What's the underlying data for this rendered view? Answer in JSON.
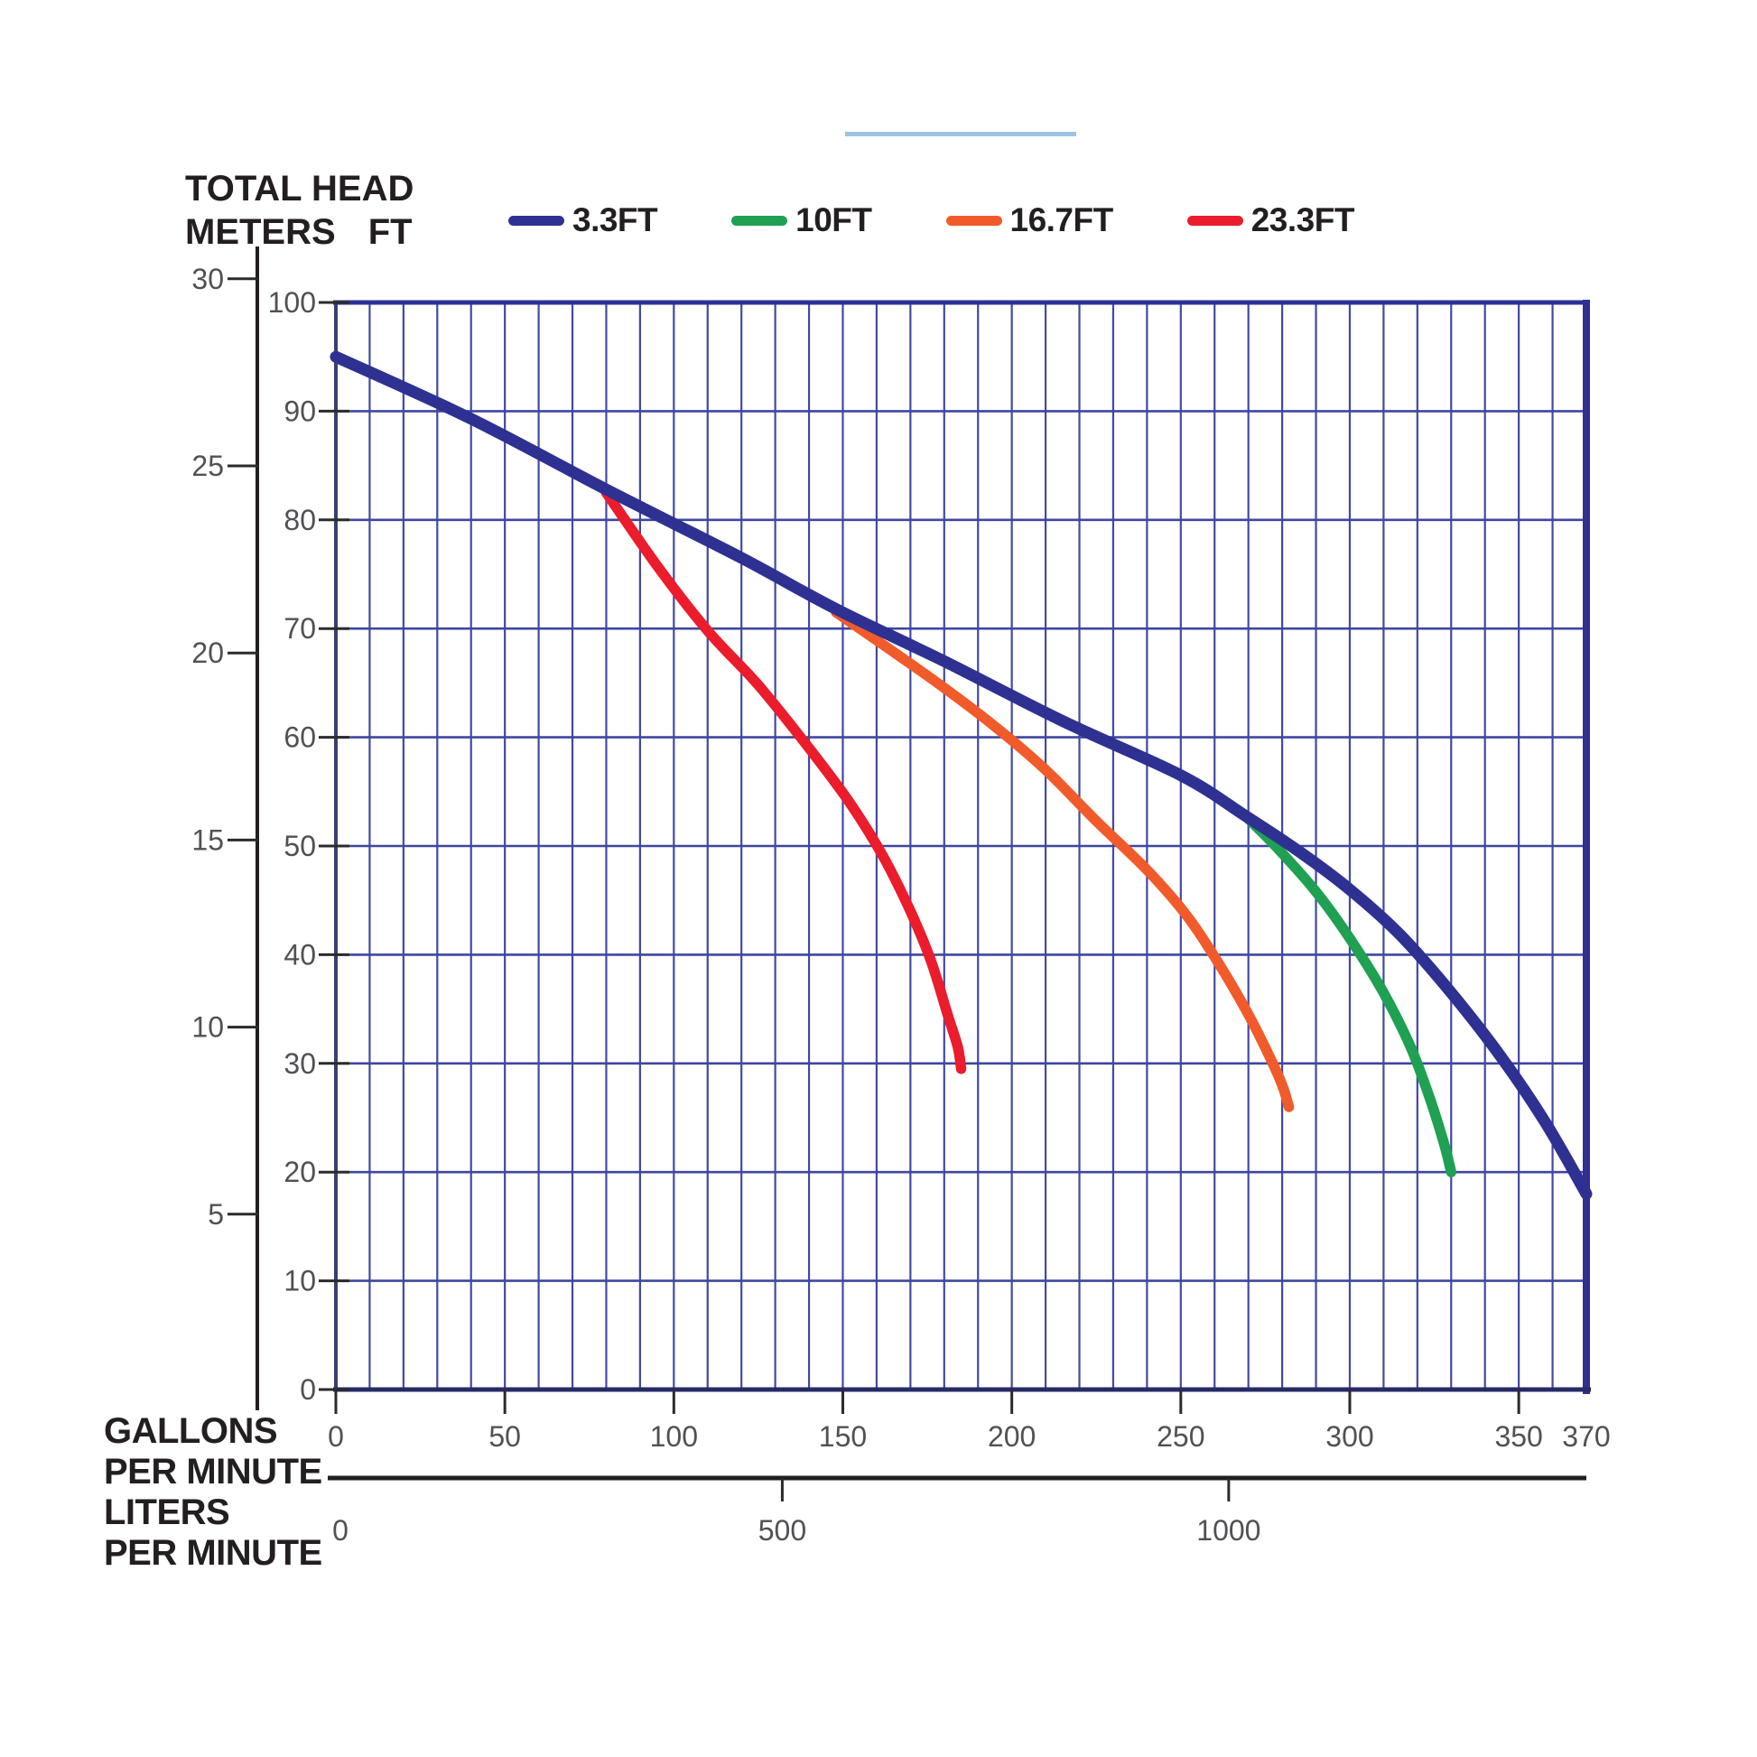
{
  "title": {
    "line1": "TOTAL HEAD",
    "meters_label": "METERS",
    "ft_label": "FT"
  },
  "annotation": {
    "highlight_line_color": "#9DC3E6"
  },
  "legend": [
    {
      "label": "3.3FT",
      "color": "#2E3192"
    },
    {
      "label": "10FT",
      "color": "#1FA052"
    },
    {
      "label": "16.7FT",
      "color": "#F15B2B"
    },
    {
      "label": "23.3FT",
      "color": "#EB1C2C"
    }
  ],
  "axes": {
    "ft_ticks": [
      0,
      10,
      20,
      30,
      40,
      50,
      60,
      70,
      80,
      90,
      100
    ],
    "meters_ticks": [
      5,
      10,
      15,
      20,
      25,
      30
    ],
    "gpm_ticks": [
      0,
      50,
      100,
      150,
      200,
      250,
      300,
      350,
      370
    ],
    "lpm_ticks": [
      0,
      500,
      1000
    ],
    "captions": [
      "GALLONS",
      "PER MINUTE",
      "LITERS",
      "PER MINUTE"
    ]
  },
  "chart_data": {
    "type": "line",
    "title": "TOTAL HEAD vs FLOW (pump performance curves)",
    "ylabel": "TOTAL HEAD (METERS / FT)",
    "xlabel": "GALLONS PER MINUTE / LITERS PER MINUTE",
    "y_range_ft": [
      0,
      100
    ],
    "y_step_ft": 10,
    "meters_range": [
      0,
      30
    ],
    "x_range_gpm": [
      0,
      370
    ],
    "x_minor_step_gpm": 10,
    "x_label_step_gpm": 50,
    "lpm_labels": [
      0,
      500,
      1000
    ],
    "liters_per_gallon": 3.7854,
    "grid": true,
    "grid_color": "#4149A3",
    "legend_position": "top",
    "series": [
      {
        "name": "3.3FT",
        "color": "#2E3192",
        "width": 13,
        "points_gpm_ft": [
          [
            0,
            95
          ],
          [
            40,
            89.3
          ],
          [
            80,
            82.8
          ],
          [
            120,
            76.5
          ],
          [
            148,
            71.8
          ],
          [
            180,
            67
          ],
          [
            215,
            61.5
          ],
          [
            250,
            56.5
          ],
          [
            269,
            52.8
          ],
          [
            285,
            49.5
          ],
          [
            300,
            46
          ],
          [
            315,
            41.8
          ],
          [
            330,
            36.5
          ],
          [
            345,
            30.5
          ],
          [
            358,
            24.5
          ],
          [
            370,
            18
          ]
        ]
      },
      {
        "name": "10FT",
        "color": "#1FA052",
        "width": 11.5,
        "points_gpm_ft": [
          [
            269,
            52.8
          ],
          [
            278,
            50
          ],
          [
            290,
            45.8
          ],
          [
            300,
            41.5
          ],
          [
            310,
            36.5
          ],
          [
            318,
            31.5
          ],
          [
            324,
            26.5
          ],
          [
            328,
            22.5
          ],
          [
            330,
            20
          ]
        ]
      },
      {
        "name": "16.7FT",
        "color": "#F15B2B",
        "width": 11.5,
        "points_gpm_ft": [
          [
            148,
            71.5
          ],
          [
            162,
            68.5
          ],
          [
            178,
            65
          ],
          [
            195,
            61
          ],
          [
            210,
            57
          ],
          [
            225,
            52.3
          ],
          [
            240,
            47.8
          ],
          [
            252,
            43.5
          ],
          [
            262,
            38.8
          ],
          [
            270,
            34.5
          ],
          [
            276,
            30.8
          ],
          [
            280,
            28
          ],
          [
            282,
            26
          ]
        ]
      },
      {
        "name": "23.3FT",
        "color": "#EB1C2C",
        "width": 11.5,
        "points_gpm_ft": [
          [
            80,
            82.5
          ],
          [
            95,
            75.8
          ],
          [
            110,
            69.8
          ],
          [
            125,
            64.8
          ],
          [
            140,
            59
          ],
          [
            152,
            54
          ],
          [
            162,
            49
          ],
          [
            170,
            44
          ],
          [
            176,
            39.5
          ],
          [
            181,
            34.5
          ],
          [
            184,
            31.5
          ],
          [
            185,
            29.5
          ]
        ]
      }
    ]
  }
}
